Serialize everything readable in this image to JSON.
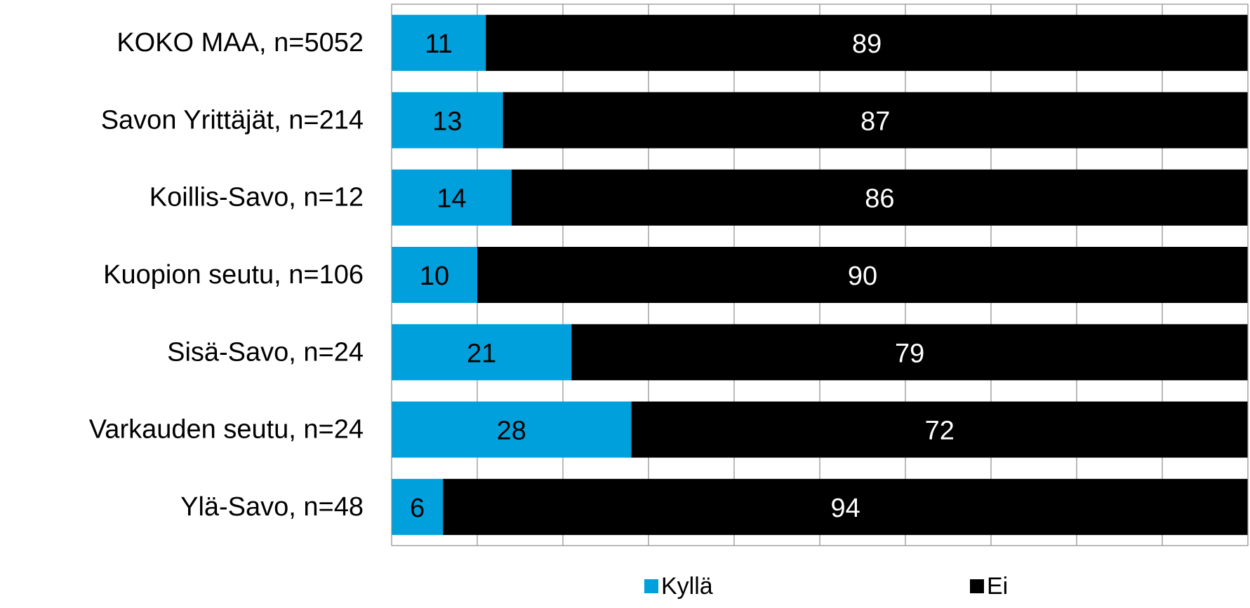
{
  "chart_data": {
    "type": "bar",
    "orientation": "horizontal",
    "stacked": true,
    "categories": [
      "KOKO MAA, n=5052",
      "Savon Yrittäjät, n=214",
      "Koillis-Savo, n=12",
      "Kuopion seutu, n=106",
      "Sisä-Savo, n=24",
      "Varkauden seutu, n=24",
      "Ylä-Savo, n=48"
    ],
    "series": [
      {
        "name": "Kyllä",
        "color": "#00A0DC",
        "label_color": "#000000",
        "values": [
          11,
          13,
          14,
          10,
          21,
          28,
          6
        ]
      },
      {
        "name": "Ei",
        "color": "#000000",
        "label_color": "#ffffff",
        "values": [
          89,
          87,
          86,
          90,
          79,
          72,
          94
        ]
      }
    ],
    "xlim": [
      0,
      100
    ],
    "x_gridline_step": 10,
    "grid": true,
    "legend": "bottom",
    "title": "",
    "xlabel": "",
    "ylabel": ""
  }
}
